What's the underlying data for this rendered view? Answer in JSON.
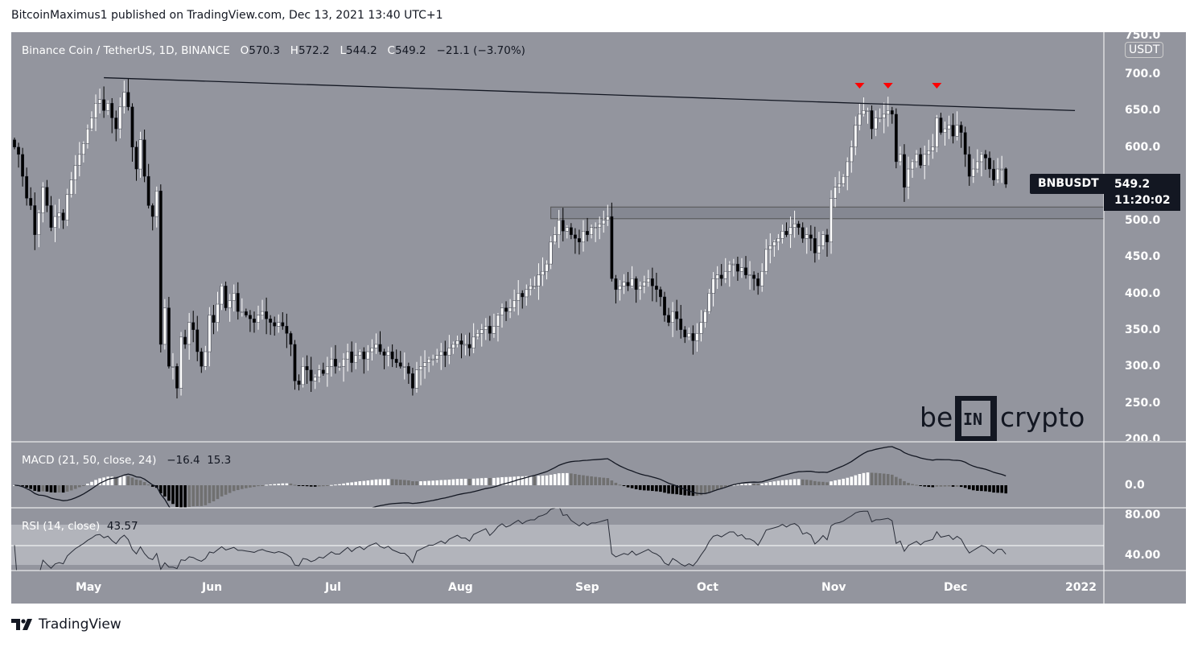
{
  "header": {
    "published": "BitcoinMaximus1 published on TradingView.com, Dec 13, 2021 13:40 UTC+1"
  },
  "legend": {
    "symbol": "Binance Coin / TetherUS, 1D, BINANCE",
    "o_label": "O",
    "o": "570.3",
    "h_label": "H",
    "h": "572.2",
    "l_label": "L",
    "l": "544.2",
    "c_label": "C",
    "c": "549.2",
    "change": "−21.1 (−3.70%)"
  },
  "price_axis": {
    "currency": "USDT",
    "ticks": [
      "750.0",
      "700.0",
      "650.0",
      "600.0",
      "500.0",
      "450.0",
      "400.0",
      "350.0",
      "300.0",
      "250.0",
      "200.0"
    ]
  },
  "price_tag": {
    "symbol": "BNBUSDT",
    "price": "549.2",
    "countdown": "11:20:02"
  },
  "macd": {
    "label": "MACD (21, 50, close, 24)",
    "v1": "−16.4",
    "v2": "15.3",
    "ticks": [
      "0.0"
    ]
  },
  "rsi": {
    "label": "RSI (14, close)",
    "value": "43.57",
    "ticks": [
      "80.00",
      "40.00"
    ],
    "band": [
      30,
      70
    ]
  },
  "time_axis": {
    "ticks": [
      "May",
      "Jun",
      "Jul",
      "Aug",
      "Sep",
      "Oct",
      "Nov",
      "Dec",
      "2022"
    ]
  },
  "watermark": {
    "text": "be[IN]crypto"
  },
  "footer": {
    "brand": "TradingView"
  },
  "colors": {
    "background": "#93959e",
    "up": "#ffffff",
    "down": "#000000",
    "marker": "#ff0000",
    "tag": "#131722"
  },
  "chart_data": {
    "type": "candlestick",
    "title": "Binance Coin / TetherUS, 1D, BINANCE",
    "x_first": "2021-04-13",
    "x_last": "2021-12-13",
    "ylim": [
      200,
      750
    ],
    "last_candle": {
      "open": 570.3,
      "high": 572.2,
      "low": 544.2,
      "close": 549.2
    },
    "closes": [
      600,
      590,
      560,
      530,
      520,
      480,
      510,
      545,
      520,
      490,
      505,
      510,
      500,
      535,
      555,
      575,
      590,
      605,
      625,
      640,
      660,
      665,
      650,
      660,
      640,
      625,
      655,
      675,
      655,
      600,
      570,
      610,
      560,
      520,
      505,
      540,
      330,
      380,
      300,
      300,
      270,
      340,
      330,
      360,
      350,
      320,
      300,
      320,
      370,
      360,
      385,
      410,
      380,
      390,
      400,
      375,
      375,
      370,
      365,
      360,
      370,
      375,
      365,
      360,
      355,
      360,
      355,
      345,
      330,
      280,
      275,
      300,
      295,
      280,
      285,
      295,
      290,
      300,
      310,
      300,
      300,
      310,
      320,
      305,
      315,
      320,
      310,
      320,
      325,
      330,
      320,
      315,
      320,
      310,
      305,
      300,
      300,
      290,
      270,
      295,
      300,
      305,
      310,
      310,
      315,
      320,
      315,
      325,
      330,
      335,
      330,
      330,
      325,
      340,
      345,
      350,
      355,
      345,
      355,
      370,
      380,
      375,
      380,
      390,
      400,
      395,
      405,
      410,
      410,
      425,
      430,
      440,
      470,
      480,
      500,
      485,
      490,
      480,
      475,
      470,
      485,
      480,
      490,
      490,
      495,
      500,
      505,
      420,
      405,
      410,
      415,
      410,
      420,
      405,
      410,
      415,
      420,
      410,
      405,
      395,
      370,
      360,
      375,
      365,
      350,
      340,
      345,
      335,
      345,
      360,
      375,
      400,
      420,
      425,
      420,
      430,
      440,
      440,
      430,
      435,
      425,
      425,
      420,
      410,
      430,
      460,
      465,
      470,
      475,
      485,
      480,
      490,
      495,
      490,
      475,
      480,
      475,
      455,
      465,
      480,
      470,
      530,
      545,
      550,
      560,
      580,
      600,
      630,
      645,
      650,
      650,
      625,
      640,
      640,
      645,
      650,
      645,
      580,
      590,
      545,
      570,
      580,
      590,
      575,
      590,
      595,
      600,
      640,
      620,
      625,
      630,
      615,
      630,
      620,
      590,
      560,
      570,
      580,
      590,
      585,
      570,
      555,
      570,
      570,
      549.2
    ],
    "resistance_line": {
      "from": {
        "date": "2021-05-05",
        "price": 695
      },
      "to": {
        "date": "2021-12-30",
        "price": 650
      }
    },
    "support_zone": {
      "from_date": "2021-08-23",
      "low": 502,
      "high": 518
    },
    "bearish_markers": [
      "2021-11-07",
      "2021-11-14",
      "2021-11-26"
    ]
  }
}
